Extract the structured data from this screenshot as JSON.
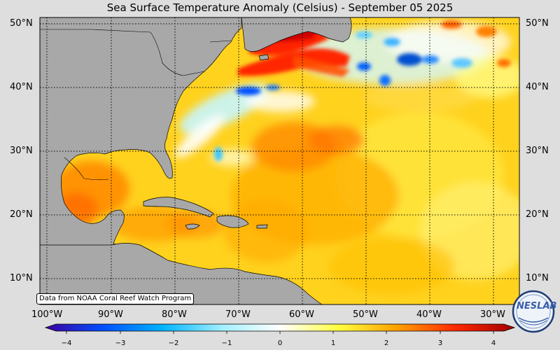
{
  "title": "Sea Surface Temperature Anomaly (Celsius) - September 05 2025",
  "credit": "Data from NOAA Coral Reef Watch Program",
  "logo_text": "NESLAB",
  "lat_labels": [
    "50°N",
    "40°N",
    "30°N",
    "20°N",
    "10°N"
  ],
  "lon_labels": [
    "100°W",
    "90°W",
    "80°W",
    "70°W",
    "60°W",
    "50°W",
    "40°W",
    "30°W"
  ],
  "colorbar": {
    "ticks": [
      "−4",
      "−3",
      "−2",
      "−1",
      "0",
      "1",
      "2",
      "3",
      "4"
    ],
    "colors": [
      "#3c00a0",
      "#0050ff",
      "#00b4ff",
      "#a0f0ff",
      "#ffffff",
      "#ffff40",
      "#ffa000",
      "#ff2800",
      "#a00000"
    ]
  },
  "colors": {
    "land": "#a8a8a8",
    "ocean_base": "#ffd21e",
    "background": "#dedede"
  }
}
